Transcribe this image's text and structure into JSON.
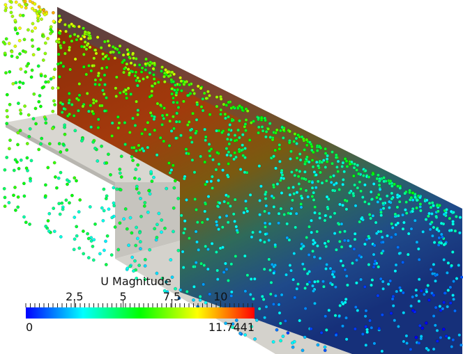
{
  "colorbar": {
    "title": "U Magnitude",
    "range": [
      0,
      11.7441
    ],
    "ticks": [
      2.5,
      5,
      7.5,
      10
    ]
  }
}
